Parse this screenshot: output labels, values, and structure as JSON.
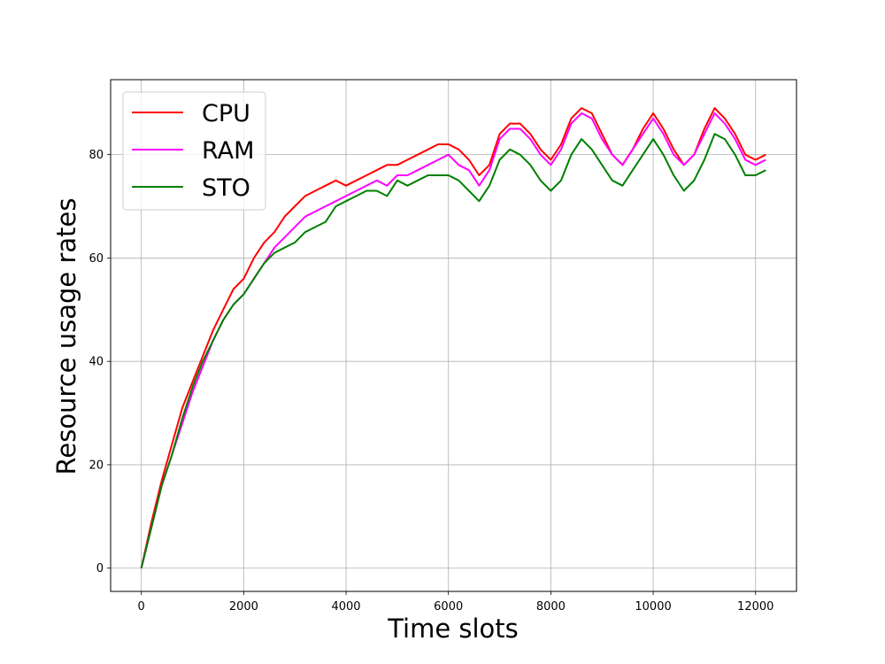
{
  "chart_data": {
    "type": "line",
    "title": "",
    "xlabel": "Time slots",
    "ylabel": "Resource usage rates",
    "xlim": [
      -600,
      12800
    ],
    "ylim": [
      -4.5,
      94.5
    ],
    "xticks": [
      0,
      2000,
      4000,
      6000,
      8000,
      10000,
      12000
    ],
    "yticks": [
      0,
      20,
      40,
      60,
      80
    ],
    "grid": true,
    "legend_position": "upper-left",
    "x": [
      0,
      200,
      400,
      600,
      800,
      1000,
      1200,
      1400,
      1600,
      1800,
      2000,
      2200,
      2400,
      2600,
      2800,
      3000,
      3200,
      3400,
      3600,
      3800,
      4000,
      4200,
      4400,
      4600,
      4800,
      5000,
      5200,
      5400,
      5600,
      5800,
      6000,
      6200,
      6400,
      6600,
      6800,
      7000,
      7200,
      7400,
      7600,
      7800,
      8000,
      8200,
      8400,
      8600,
      8800,
      9000,
      9200,
      9400,
      9600,
      9800,
      10000,
      10200,
      10400,
      10600,
      10800,
      11000,
      11200,
      11400,
      11600,
      11800,
      12000,
      12200
    ],
    "series": [
      {
        "name": "CPU",
        "color": "#ff0000",
        "values": [
          0,
          9,
          17,
          24,
          31,
          36,
          41,
          46,
          50,
          54,
          56,
          60,
          63,
          65,
          68,
          70,
          72,
          73,
          74,
          75,
          74,
          75,
          76,
          77,
          78,
          78,
          79,
          80,
          81,
          82,
          82,
          81,
          79,
          76,
          78,
          84,
          86,
          86,
          84,
          81,
          79,
          82,
          87,
          89,
          88,
          84,
          80,
          78,
          81,
          85,
          88,
          85,
          81,
          78,
          80,
          85,
          89,
          87,
          84,
          80,
          79,
          80
        ]
      },
      {
        "name": "RAM",
        "color": "#ff00ff",
        "values": [
          0,
          8,
          16,
          22,
          28,
          34,
          39,
          44,
          48,
          51,
          53,
          56,
          59,
          62,
          64,
          66,
          68,
          69,
          70,
          71,
          72,
          73,
          74,
          75,
          74,
          76,
          76,
          77,
          78,
          79,
          80,
          78,
          77,
          74,
          77,
          83,
          85,
          85,
          83,
          80,
          78,
          81,
          86,
          88,
          87,
          83,
          80,
          78,
          81,
          84,
          87,
          84,
          80,
          78,
          80,
          84,
          88,
          86,
          83,
          79,
          78,
          79
        ]
      },
      {
        "name": "STO",
        "color": "#008000",
        "values": [
          0,
          8,
          16,
          22,
          29,
          35,
          40,
          44,
          48,
          51,
          53,
          56,
          59,
          61,
          62,
          63,
          65,
          66,
          67,
          70,
          71,
          72,
          73,
          73,
          72,
          75,
          74,
          75,
          76,
          76,
          76,
          75,
          73,
          71,
          74,
          79,
          81,
          80,
          78,
          75,
          73,
          75,
          80,
          83,
          81,
          78,
          75,
          74,
          77,
          80,
          83,
          80,
          76,
          73,
          75,
          79,
          84,
          83,
          80,
          76,
          76,
          77
        ]
      }
    ]
  }
}
